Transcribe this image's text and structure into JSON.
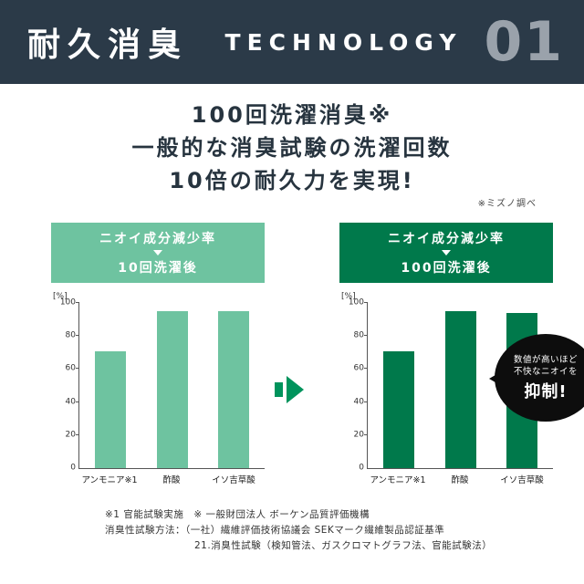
{
  "header": {
    "title": "耐久消臭",
    "technology": "TECHNOLOGY",
    "number": "01"
  },
  "headline": {
    "line1": "100回洗濯消臭※",
    "line2": "一般的な消臭試験の洗濯回数",
    "line3": "10倍の耐久力を実現!",
    "survey_note": "※ミズノ調べ"
  },
  "chart_data": [
    {
      "type": "bar",
      "title": "ニオイ成分減少率",
      "subtitle": "10回洗濯後",
      "categories": [
        "アンモニア※1",
        "酢酸",
        "イソ吉草酸"
      ],
      "values": [
        71,
        95,
        95
      ],
      "ylabel": "[%]",
      "ylim": [
        0,
        100
      ],
      "yticks": [
        0,
        20,
        40,
        60,
        80,
        100
      ],
      "bar_color": "#6ec3a0",
      "banner_color": "#6ec3a0",
      "grid": false,
      "legend": "none"
    },
    {
      "type": "bar",
      "title": "ニオイ成分減少率",
      "subtitle": "100回洗濯後",
      "categories": [
        "アンモニア※1",
        "酢酸",
        "イソ吉草酸"
      ],
      "values": [
        71,
        95,
        94
      ],
      "ylabel": "[%]",
      "ylim": [
        0,
        100
      ],
      "yticks": [
        0,
        20,
        40,
        60,
        80,
        100
      ],
      "bar_color": "#00794b",
      "banner_color": "#00794b",
      "grid": false,
      "legend": "none"
    }
  ],
  "bubble": {
    "line1": "数値が高いほど",
    "line2": "不快なニオイを",
    "line3": "抑制!"
  },
  "footnotes": {
    "line1": "※1 官能試験実施　※ 一般財団法人 ボーケン品質評価機構",
    "line2": "消臭性試験方法：（一社）繊維評価技術協議会 SEKマーク繊維製品認証基準",
    "line3": "21.消臭性試験（検知管法、ガスクロマトグラフ法、官能試験法）"
  },
  "colors": {
    "header_navy": "#2b3a48",
    "light_green": "#6ec3a0",
    "dark_green": "#00794b",
    "arrow_green": "#00935c",
    "number_gray": "#9aa2ab",
    "bubble_black": "#0d0d0d"
  }
}
